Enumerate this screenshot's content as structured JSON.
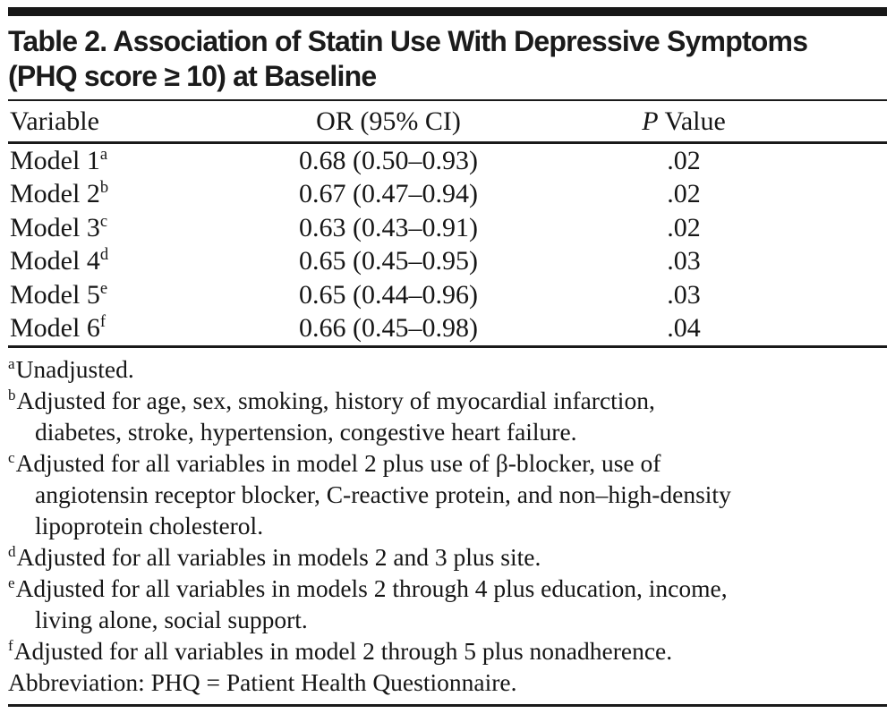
{
  "page": {
    "background": "#ffffff",
    "text_color": "#161616",
    "bar_color": "#181818"
  },
  "table": {
    "title_lines": [
      "Table 2. Association of Statin Use With Depressive Symptoms",
      "(PHQ score ≥ 10) at Baseline"
    ],
    "headers": {
      "variable": "Variable",
      "or": "OR (95% CI)",
      "p_italic": "P",
      "p_rest": "Value"
    },
    "rows": [
      {
        "variable": "Model 1",
        "sup": "a",
        "or": "0.68 (0.50–0.93)",
        "p": ".02"
      },
      {
        "variable": "Model 2",
        "sup": "b",
        "or": "0.67 (0.47–0.94)",
        "p": ".02"
      },
      {
        "variable": "Model 3",
        "sup": "c",
        "or": "0.63 (0.43–0.91)",
        "p": ".02"
      },
      {
        "variable": "Model 4",
        "sup": "d",
        "or": "0.65 (0.45–0.95)",
        "p": ".03"
      },
      {
        "variable": "Model 5",
        "sup": "e",
        "or": "0.65 (0.44–0.96)",
        "p": ".03"
      },
      {
        "variable": "Model 6",
        "sup": "f",
        "or": "0.66 (0.45–0.98)",
        "p": ".04"
      }
    ],
    "footnotes": [
      {
        "marker": "a",
        "lines": [
          "Unadjusted."
        ]
      },
      {
        "marker": "b",
        "lines": [
          "Adjusted for age, sex, smoking, history of myocardial infarction,",
          "diabetes, stroke, hypertension, congestive heart failure."
        ]
      },
      {
        "marker": "c",
        "lines": [
          "Adjusted for all variables in model 2 plus use of β-blocker, use of",
          "angiotensin receptor blocker, C-reactive protein, and non–high-density",
          "lipoprotein cholesterol."
        ]
      },
      {
        "marker": "d",
        "lines": [
          "Adjusted for all variables in models 2 and 3 plus site."
        ]
      },
      {
        "marker": "e",
        "lines": [
          "Adjusted for all variables in models 2 through 4 plus education, income,",
          "living alone, social support."
        ]
      },
      {
        "marker": "f",
        "lines": [
          "Adjusted for all variables in model 2 through 5 plus nonadherence."
        ]
      }
    ],
    "abbreviation": "Abbreviation: PHQ = Patient Health Questionnaire."
  }
}
